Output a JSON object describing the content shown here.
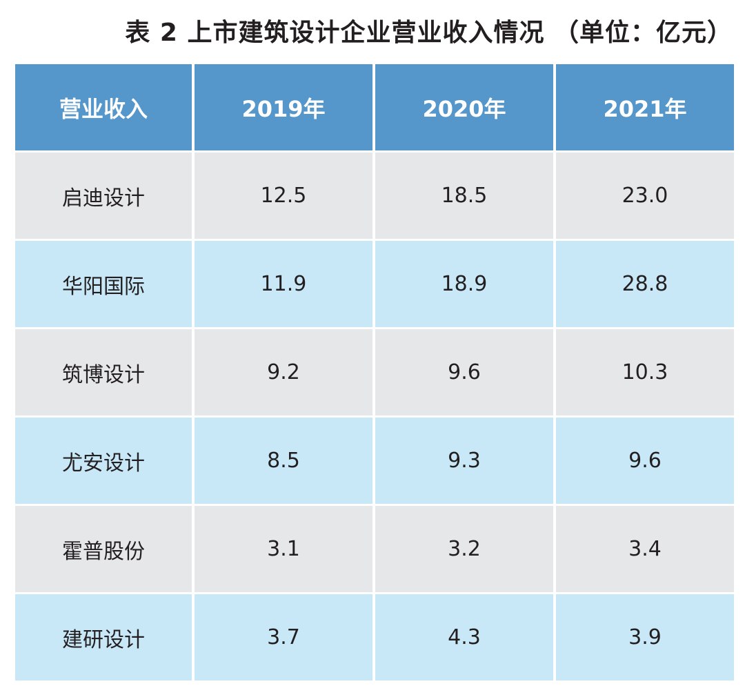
{
  "title": "表 2  上市建筑设计企业营业收入情况  （单位：亿元）",
  "table": {
    "headers": [
      "营业收入",
      "2019年",
      "2020年",
      "2021年"
    ],
    "rows": [
      [
        "启迪设计",
        "12.5",
        "18.5",
        "23.0"
      ],
      [
        "华阳国际",
        "11.9",
        "18.9",
        "28.8"
      ],
      [
        "筑博设计",
        "9.2",
        "9.6",
        "10.3"
      ],
      [
        "尤安设计",
        "8.5",
        "9.3",
        "9.6"
      ],
      [
        "霍普股份",
        "3.1",
        "3.2",
        "3.4"
      ],
      [
        "建研设计",
        "3.7",
        "4.3",
        "3.9"
      ]
    ]
  },
  "colors": {
    "header_bg": "#5597cb",
    "row_gray": "#e6e7e8",
    "row_blue": "#c8e8f8",
    "text": "#231f20"
  }
}
